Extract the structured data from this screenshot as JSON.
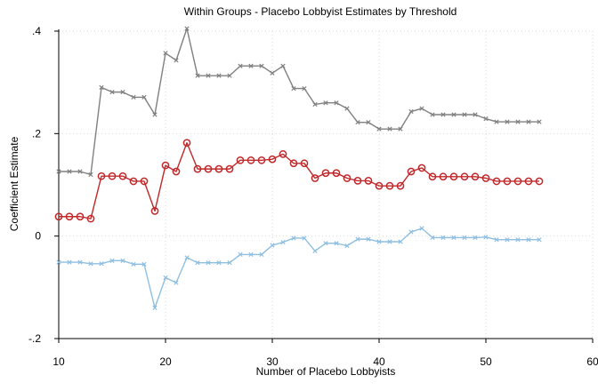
{
  "chart_data": {
    "type": "line",
    "title": "Within Groups - Placebo Lobbyist Estimates by Threshold",
    "xlabel": "Number of Placebo Lobbyists",
    "ylabel": "Coefficient Estimate",
    "xlim": [
      10,
      60
    ],
    "ylim": [
      -0.2,
      0.4
    ],
    "x_ticks": [
      10,
      20,
      30,
      40,
      50,
      60
    ],
    "x_tick_labels": [
      "10",
      "20",
      "30",
      "40",
      "50",
      "60"
    ],
    "y_ticks": [
      -0.2,
      0,
      0.2,
      0.4
    ],
    "y_tick_labels": [
      "-.2",
      "0",
      ".2",
      ".4"
    ],
    "grid": true,
    "legend": "none",
    "x": [
      10,
      11,
      12,
      13,
      14,
      15,
      16,
      17,
      18,
      19,
      20,
      21,
      22,
      23,
      24,
      25,
      26,
      27,
      28,
      29,
      30,
      31,
      32,
      33,
      34,
      35,
      36,
      37,
      38,
      39,
      40,
      41,
      42,
      43,
      44,
      45,
      46,
      47,
      48,
      49,
      50,
      51,
      52,
      53,
      54,
      55
    ],
    "series": [
      {
        "color": "#808080",
        "marker": "x",
        "values": [
          0.126,
          0.126,
          0.126,
          0.12,
          0.29,
          0.281,
          0.281,
          0.271,
          0.271,
          0.237,
          0.357,
          0.343,
          0.405,
          0.313,
          0.313,
          0.313,
          0.313,
          0.332,
          0.332,
          0.332,
          0.318,
          0.332,
          0.288,
          0.288,
          0.257,
          0.26,
          0.26,
          0.249,
          0.222,
          0.222,
          0.209,
          0.209,
          0.209,
          0.243,
          0.249,
          0.237,
          0.237,
          0.237,
          0.237,
          0.237,
          0.229,
          0.223,
          0.223,
          0.223,
          0.223,
          0.223
        ]
      },
      {
        "color": "#c0282a",
        "marker": "circle",
        "values": [
          0.038,
          0.038,
          0.038,
          0.034,
          0.117,
          0.117,
          0.117,
          0.107,
          0.107,
          0.049,
          0.138,
          0.126,
          0.182,
          0.131,
          0.131,
          0.131,
          0.131,
          0.148,
          0.148,
          0.148,
          0.15,
          0.16,
          0.142,
          0.142,
          0.113,
          0.123,
          0.123,
          0.113,
          0.108,
          0.108,
          0.098,
          0.098,
          0.098,
          0.126,
          0.133,
          0.116,
          0.116,
          0.116,
          0.116,
          0.116,
          0.113,
          0.107,
          0.107,
          0.107,
          0.107,
          0.107
        ]
      },
      {
        "color": "#8fbfe0",
        "marker": "x",
        "values": [
          -0.051,
          -0.051,
          -0.051,
          -0.054,
          -0.054,
          -0.048,
          -0.048,
          -0.055,
          -0.055,
          -0.14,
          -0.081,
          -0.091,
          -0.042,
          -0.052,
          -0.052,
          -0.052,
          -0.052,
          -0.036,
          -0.036,
          -0.036,
          -0.018,
          -0.012,
          -0.004,
          -0.004,
          -0.029,
          -0.014,
          -0.014,
          -0.019,
          -0.006,
          -0.006,
          -0.011,
          -0.011,
          -0.011,
          0.008,
          0.015,
          -0.003,
          -0.003,
          -0.003,
          -0.003,
          -0.003,
          -0.002,
          -0.007,
          -0.007,
          -0.007,
          -0.007,
          -0.007
        ]
      }
    ]
  }
}
